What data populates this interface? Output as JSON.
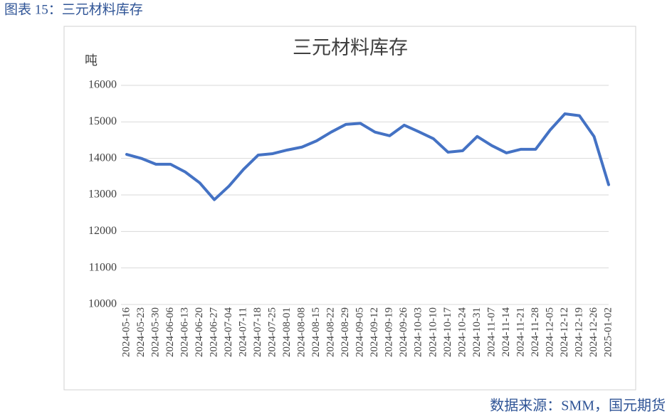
{
  "header": "图表 15：三元材料库存",
  "chart_data": {
    "type": "line",
    "title": "三元材料库存",
    "y_label": "吨",
    "categories": [
      "2024-05-16",
      "2024-05-23",
      "2024-05-30",
      "2024-06-06",
      "2024-06-13",
      "2024-06-20",
      "2024-06-27",
      "2024-07-04",
      "2024-07-11",
      "2024-07-18",
      "2024-07-25",
      "2024-08-01",
      "2024-08-08",
      "2024-08-15",
      "2024-08-22",
      "2024-08-29",
      "2024-09-05",
      "2024-09-12",
      "2024-09-19",
      "2024-09-26",
      "2024-10-03",
      "2024-10-10",
      "2024-10-17",
      "2024-10-24",
      "2024-10-31",
      "2024-11-07",
      "2024-11-14",
      "2024-11-21",
      "2024-11-28",
      "2024-12-05",
      "2024-12-12",
      "2024-12-19",
      "2024-12-26",
      "2025-01-02"
    ],
    "values": [
      14110,
      14000,
      13840,
      13840,
      13630,
      13330,
      12870,
      13240,
      13700,
      14090,
      14130,
      14230,
      14310,
      14480,
      14720,
      14930,
      14960,
      14720,
      14620,
      14910,
      14730,
      14540,
      14170,
      14210,
      14600,
      14350,
      14150,
      14250,
      14250,
      14780,
      15220,
      15170,
      14600,
      13280
    ],
    "color": "#4472c4",
    "ylim": [
      10000,
      16000
    ],
    "yticks": [
      10000,
      11000,
      12000,
      13000,
      14000,
      15000,
      16000
    ],
    "grid": true
  },
  "source": "数据来源：SMM，国元期货"
}
